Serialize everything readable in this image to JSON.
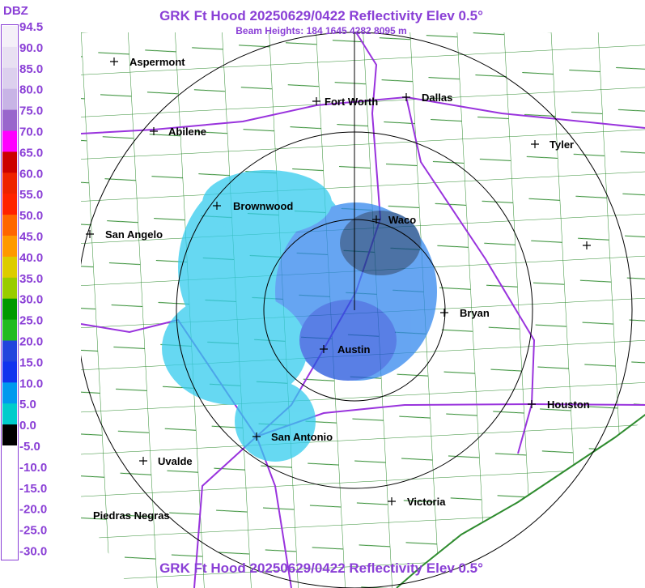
{
  "header": {
    "title": "GRK Ft Hood 20250629/0422 Reflectivity Elev 0.5°",
    "subtitle": "Beam Heights: 184 1645 4282 8095 m",
    "footer": "GRK Ft Hood 20250629/0422 Reflectivity Elev 0.5°"
  },
  "legend": {
    "unit": "DBZ",
    "labels": [
      "94.5",
      "90.0",
      "85.0",
      "80.0",
      "75.0",
      "70.0",
      "65.0",
      "60.0",
      "55.0",
      "50.0",
      "45.0",
      "40.0",
      "35.0",
      "30.0",
      "25.0",
      "20.0",
      "15.0",
      "10.0",
      "5.0",
      "0.0",
      "-5.0",
      "-10.0",
      "-15.0",
      "-20.0",
      "-25.0",
      "-30.0"
    ]
  },
  "cities": [
    "Aspermont",
    "Fort Worth",
    "Dallas",
    "Abilene",
    "Tyler",
    "Brownwood",
    "Waco",
    "San Angelo",
    "Bryan",
    "Austin",
    "Houston",
    "San Antonio",
    "Uvalde",
    "Victoria",
    "Piedras Negras"
  ]
}
